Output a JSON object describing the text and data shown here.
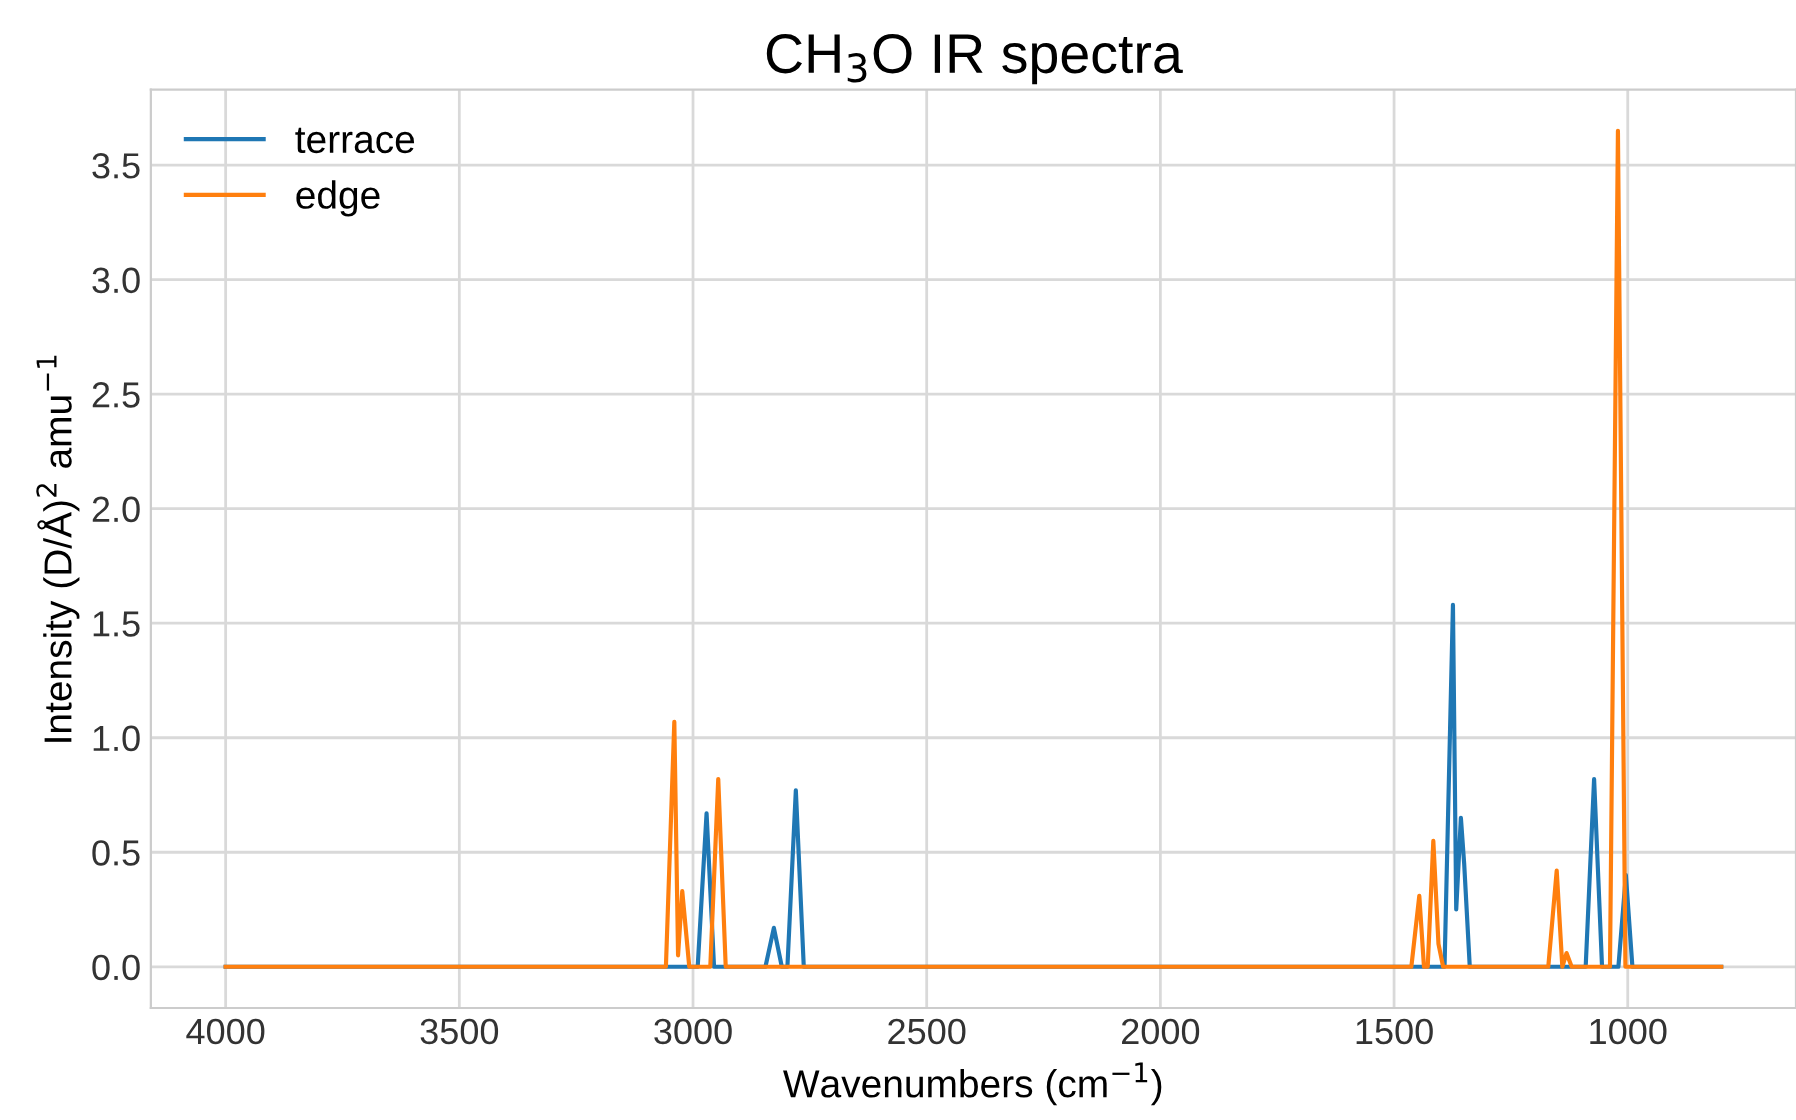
{
  "chart_data": {
    "type": "line",
    "title": "CH$_{3}$O IR spectra",
    "xlabel": "Wavenumbers (cm$^{−1}$)",
    "ylabel": "Intensity (D/Å)$^{2}$ amu$^{−1}$",
    "series": [
      {
        "name": "terrace",
        "color": "#1f77b4",
        "x": [
          4000,
          2990,
          2971,
          2955,
          2845,
          2827,
          2810,
          2798,
          2780,
          2763,
          1392,
          1374,
          1367,
          1357,
          1350,
          1338,
          1090,
          1072,
          1055,
          1020,
          1004,
          990,
          800
        ],
        "values": [
          0,
          0,
          0.67,
          0,
          0,
          0.17,
          0,
          0,
          0.77,
          0,
          0,
          1.58,
          0.25,
          0.65,
          0.45,
          0,
          0,
          0.82,
          0,
          0,
          0.4,
          0,
          0
        ]
      },
      {
        "name": "edge",
        "color": "#ff7f0e",
        "x": [
          4000,
          3058,
          3040,
          3032,
          3023,
          3008,
          2963,
          2946,
          2930,
          1463,
          1446,
          1436,
          1428,
          1416,
          1405,
          1395,
          1170,
          1152,
          1140,
          1131,
          1120,
          1038,
          1021,
          1005,
          800
        ],
        "values": [
          0,
          0,
          1.07,
          0.05,
          0.33,
          0,
          0,
          0.82,
          0,
          0,
          0.31,
          0,
          0,
          0.55,
          0.1,
          0,
          0,
          0.42,
          0,
          0.06,
          0,
          0,
          3.65,
          0,
          0
        ]
      }
    ],
    "xlim": [
      4160,
      640
    ],
    "ylim": [
      -0.18,
      3.83
    ],
    "xticks": [
      4000,
      3500,
      3000,
      2500,
      2000,
      1500,
      1000
    ],
    "yticks": [
      {
        "value": 0,
        "label": "0.0"
      },
      {
        "value": 0.5,
        "label": "0.5"
      },
      {
        "value": 1,
        "label": "1.0"
      },
      {
        "value": 1.5,
        "label": "1.5"
      },
      {
        "value": 2,
        "label": "2.0"
      },
      {
        "value": 2.5,
        "label": "2.5"
      },
      {
        "value": 3,
        "label": "3.0"
      },
      {
        "value": 3.5,
        "label": "3.5"
      }
    ],
    "grid": true,
    "legend": "top left",
    "marker": "none",
    "line_style": "solid"
  }
}
